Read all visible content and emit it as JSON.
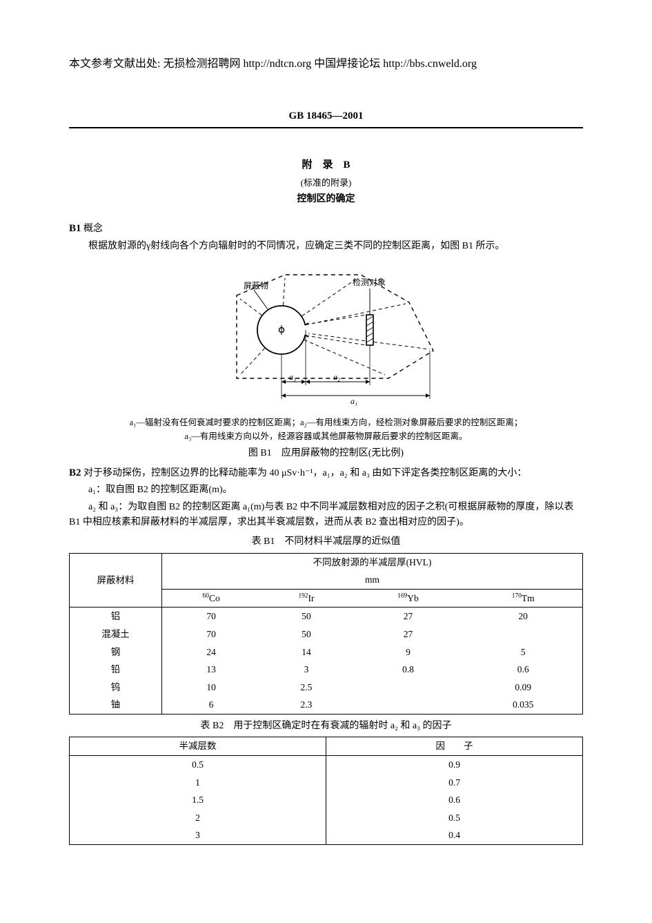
{
  "top_reference": "本文参考文献出处:  无损检测招聘网 http://ndtcn.org  中国焊接论坛  http://bbs.cnweld.org",
  "standard_code": "GB  18465—2001",
  "appendix": {
    "line1": "附　录　B",
    "line2": "(标准的附录)",
    "line3": "控制区的确定"
  },
  "b1": {
    "label": "B1",
    "heading": "概念",
    "para1": "根据放射源的γ射线向各个方向辐射时的不同情况，应确定三类不同的控制区距离，如图 B1 所示。"
  },
  "figure_b1": {
    "label_shield": "屏蔽物",
    "label_object": "检测对象",
    "dim_a1": "a₁",
    "dim_a2": "a₂",
    "dim_a3": "a₃",
    "caption_line1": "a₁—辐射没有任何衰减时要求的控制区距离；a₂—有用线束方向，经检测对象屏蔽后要求的控制区距离；",
    "caption_line2": "a₃—有用线束方向以外，经源容器或其他屏蔽物屏蔽后要求的控制区距离。",
    "title": "图 B1　应用屏蔽物的控制区(无比例)"
  },
  "b2": {
    "label": "B2",
    "para1": "对于移动探伤，控制区边界的比释动能率为 40 μSv·h⁻¹，a₁，a₂ 和 a₃ 由如下评定各类控制区距离的大小：",
    "para2": "a₁：取自图 B2 的控制区距离(m)。",
    "para3": "a₂ 和 a₃：为取自图 B2 的控制区距离 a₁(m)与表 B2 中不同半减层数相对应的因子之积(可根据屏蔽物的厚度，除以表 B1 中相应核素和屏蔽材料的半减层厚，求出其半衰减层数，进而从表 B2 查出相对应的因子)。"
  },
  "table_b1": {
    "title": "表 B1　不同材料半减层厚的近似值",
    "row_header_material": "屏蔽材料",
    "col_group_header": "不同放射源的半减层厚(HVL)",
    "col_group_unit": "mm",
    "isotopes": [
      {
        "mass": "60",
        "sym": "Co"
      },
      {
        "mass": "192",
        "sym": "Ir"
      },
      {
        "mass": "169",
        "sym": "Yb"
      },
      {
        "mass": "170",
        "sym": "Tm"
      }
    ],
    "rows": [
      {
        "mat": "铝",
        "v": [
          "70",
          "50",
          "27",
          "20"
        ]
      },
      {
        "mat": "混凝土",
        "v": [
          "70",
          "50",
          "27",
          ""
        ]
      },
      {
        "mat": "钢",
        "v": [
          "24",
          "14",
          "9",
          "5"
        ]
      },
      {
        "mat": "铅",
        "v": [
          "13",
          "3",
          "0.8",
          "0.6"
        ]
      },
      {
        "mat": "钨",
        "v": [
          "10",
          "2.5",
          "",
          "0.09"
        ]
      },
      {
        "mat": "铀",
        "v": [
          "6",
          "2.3",
          "",
          "0.035"
        ]
      }
    ]
  },
  "table_b2": {
    "title": "表 B2　用于控制区确定时在有衰减的辐射时 a₂ 和 a₃ 的因子",
    "col1": "半减层数",
    "col2": "因　　子",
    "rows": [
      {
        "n": "0.5",
        "f": "0.9"
      },
      {
        "n": "1",
        "f": "0.7"
      },
      {
        "n": "1.5",
        "f": "0.6"
      },
      {
        "n": "2",
        "f": "0.5"
      },
      {
        "n": "3",
        "f": "0.4"
      }
    ]
  },
  "diagram_style": {
    "stroke": "#000000",
    "dash": "6,5",
    "stroke_width": 1.4,
    "stroke_width_thin": 1,
    "font_size_label_pt": 11
  }
}
